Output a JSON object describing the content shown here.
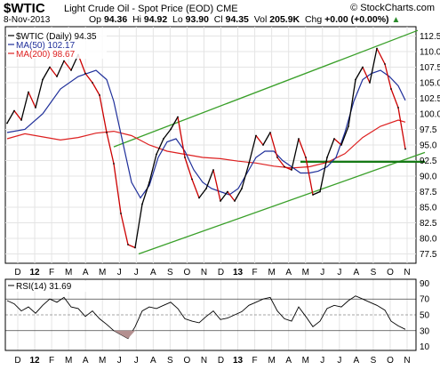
{
  "header": {
    "symbol": "$WTIC",
    "description": "Light Crude Oil - Spot Price (EOD)",
    "exchange": "CME",
    "site": "© StockCharts.com",
    "date": "8-Nov-2013",
    "stats": [
      {
        "label": "Op",
        "value": "94.36"
      },
      {
        "label": "Hi",
        "value": "94.92"
      },
      {
        "label": "Lo",
        "value": "93.90"
      },
      {
        "label": "Cl",
        "value": "94.35"
      },
      {
        "label": "Vol",
        "value": "205.9K"
      },
      {
        "label": "Chg",
        "value": "+0.00 (+0.00%)"
      }
    ],
    "chg_icon": "up-arrow-icon"
  },
  "legend": {
    "price": "$WTIC (Daily) 94.35",
    "ma50": "MA(50) 102.17",
    "ma200": "MA(200) 98.67"
  },
  "rsi_legend": "RSI(14) 31.69",
  "colors": {
    "price": "#000000",
    "down": "#cc0000",
    "ma50": "#1f2f9a",
    "ma200": "#dd2020",
    "channel": "#3aa02a",
    "support": "#157a15",
    "rsi_fill": "#b38f8f"
  },
  "chart_data": [
    {
      "type": "line",
      "name_label": "Price panel",
      "x_ticks": [
        "D",
        "12",
        "F",
        "M",
        "A",
        "M",
        "J",
        "J",
        "A",
        "S",
        "O",
        "N",
        "D",
        "13",
        "F",
        "M",
        "A",
        "M",
        "J",
        "J",
        "A",
        "S",
        "O",
        "N"
      ],
      "y_ticks": [
        77.5,
        80.0,
        82.5,
        85.0,
        87.5,
        90.0,
        92.5,
        95.0,
        97.5,
        100.0,
        102.5,
        105.0,
        107.5,
        110.0,
        112.5
      ],
      "ylim": [
        76,
        114
      ],
      "series": [
        {
          "name": "$WTIC (Daily) 94.35",
          "x": [
            0,
            8,
            16,
            24,
            32,
            40,
            48,
            56,
            64,
            72,
            80,
            88,
            96,
            104,
            112,
            120,
            128,
            136,
            144,
            152,
            160,
            168,
            176,
            184,
            192,
            200,
            208,
            216,
            224,
            232,
            240,
            248,
            256,
            264,
            272,
            280,
            288,
            296,
            304,
            312,
            320,
            328,
            336,
            344,
            352,
            360,
            368,
            376,
            384,
            392,
            400,
            408,
            416,
            425,
            432,
            440,
            448
          ],
          "values": [
            98.5,
            100.5,
            99.0,
            103.5,
            101.0,
            105.5,
            107.5,
            106.0,
            108.5,
            107.0,
            109.5,
            106.5,
            105.0,
            103.0,
            97.0,
            92.0,
            84.0,
            79.0,
            78.5,
            85.5,
            89.0,
            93.5,
            96.0,
            97.5,
            99.5,
            93.0,
            89.5,
            86.5,
            88.0,
            91.0,
            86.0,
            87.5,
            86.0,
            88.0,
            92.0,
            96.5,
            95.0,
            97.0,
            93.0,
            91.5,
            91.0,
            96.0,
            93.0,
            87.0,
            87.5,
            93.0,
            96.0,
            95.0,
            98.0,
            105.5,
            107.5,
            105.0,
            110.5,
            108.0,
            104.0,
            101.0,
            94.35
          ]
        },
        {
          "name": "MA(50) 102.17",
          "x": [
            0,
            20,
            40,
            60,
            80,
            100,
            112,
            120,
            130,
            140,
            150,
            160,
            170,
            180,
            190,
            200,
            210,
            220,
            230,
            240,
            250,
            260,
            270,
            280,
            290,
            300,
            310,
            320,
            330,
            340,
            350,
            360,
            370,
            380,
            390,
            400,
            410,
            420,
            430,
            440,
            448
          ],
          "values": [
            97.0,
            97.5,
            100.0,
            104.0,
            106.0,
            107.0,
            105.5,
            102.0,
            95.5,
            89.0,
            86.5,
            88.5,
            93.0,
            95.5,
            96.0,
            94.0,
            91.0,
            89.0,
            88.0,
            87.5,
            87.0,
            88.0,
            90.5,
            93.0,
            94.0,
            94.0,
            92.5,
            91.5,
            90.5,
            90.5,
            90.8,
            91.5,
            93.0,
            97.0,
            102.0,
            105.5,
            106.5,
            107.0,
            106.0,
            104.5,
            102.17
          ]
        },
        {
          "name": "MA(200) 98.67",
          "x": [
            0,
            20,
            40,
            60,
            80,
            100,
            120,
            140,
            160,
            180,
            200,
            220,
            240,
            260,
            280,
            300,
            320,
            340,
            360,
            380,
            400,
            420,
            440,
            448
          ],
          "values": [
            96.0,
            96.8,
            96.3,
            95.8,
            96.2,
            96.9,
            97.2,
            96.5,
            95.0,
            94.0,
            93.5,
            93.0,
            92.8,
            92.4,
            92.1,
            91.6,
            91.3,
            91.5,
            92.2,
            93.6,
            96.2,
            98.0,
            99.0,
            98.67
          ]
        }
      ],
      "lines": [
        {
          "name": "upper channel",
          "from": [
            120,
            94.7
          ],
          "to": [
            462,
            113.4
          ]
        },
        {
          "name": "lower channel",
          "from": [
            148,
            77.5
          ],
          "to": [
            470,
            93.8
          ]
        },
        {
          "name": "support",
          "from": [
            330,
            92.3
          ],
          "to": [
            470,
            92.3
          ]
        }
      ]
    },
    {
      "type": "line",
      "name_label": "RSI panel",
      "y_ticks": [
        10,
        30,
        50,
        70,
        90
      ],
      "ylim": [
        5,
        95
      ],
      "series": [
        {
          "name": "RSI(14) 31.69",
          "x": [
            0,
            8,
            16,
            24,
            32,
            40,
            48,
            56,
            64,
            72,
            80,
            88,
            96,
            104,
            112,
            120,
            128,
            136,
            144,
            152,
            160,
            168,
            176,
            184,
            192,
            200,
            208,
            216,
            224,
            232,
            240,
            248,
            256,
            264,
            272,
            280,
            288,
            296,
            304,
            312,
            320,
            328,
            336,
            344,
            352,
            360,
            368,
            376,
            384,
            392,
            400,
            408,
            416,
            425,
            432,
            440,
            448
          ],
          "values": [
            68,
            64,
            55,
            60,
            52,
            62,
            70,
            66,
            72,
            60,
            58,
            48,
            55,
            45,
            38,
            30,
            25,
            20,
            35,
            55,
            60,
            58,
            62,
            66,
            58,
            45,
            42,
            40,
            48,
            55,
            44,
            46,
            50,
            54,
            62,
            66,
            70,
            72,
            55,
            45,
            42,
            60,
            48,
            35,
            42,
            58,
            62,
            60,
            68,
            74,
            70,
            66,
            62,
            56,
            42,
            36,
            31.69
          ]
        }
      ]
    }
  ]
}
